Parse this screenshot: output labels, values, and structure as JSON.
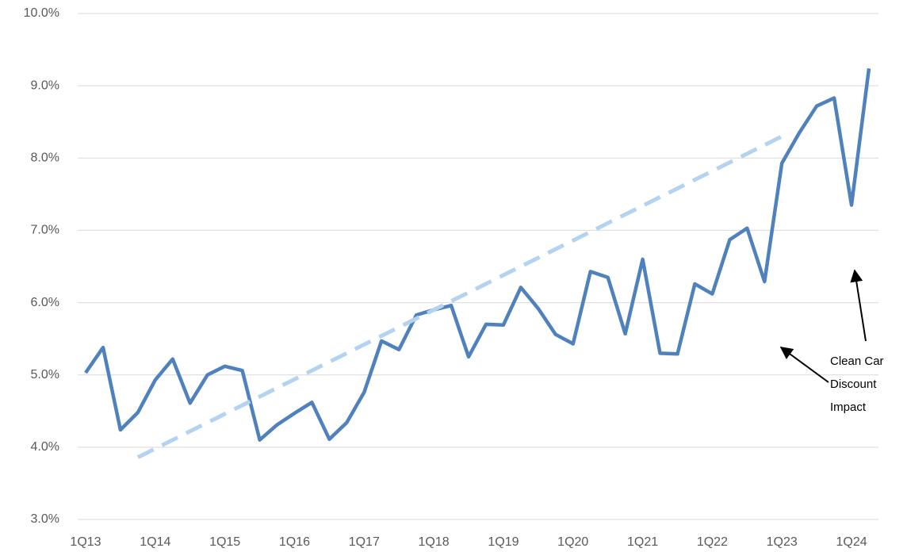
{
  "chart_data": {
    "type": "line",
    "categories": [
      "1Q13",
      null,
      null,
      null,
      "1Q14",
      null,
      null,
      null,
      "1Q15",
      null,
      null,
      null,
      "1Q16",
      null,
      null,
      null,
      "1Q17",
      null,
      null,
      null,
      "1Q18",
      null,
      null,
      null,
      "1Q19",
      null,
      null,
      null,
      "1Q20",
      null,
      null,
      null,
      "1Q21",
      null,
      null,
      null,
      "1Q22",
      null,
      null,
      null,
      "1Q23",
      null,
      null,
      null,
      "1Q24",
      null
    ],
    "series": [
      {
        "color": "#4f81bd",
        "style": "solid",
        "values": [
          5.03,
          5.38,
          4.24,
          4.48,
          4.93,
          5.22,
          4.61,
          5.0,
          5.12,
          5.06,
          4.1,
          4.31,
          4.47,
          4.62,
          4.11,
          4.34,
          4.76,
          5.47,
          5.35,
          5.83,
          5.9,
          5.96,
          5.25,
          5.7,
          5.69,
          6.21,
          5.92,
          5.56,
          5.43,
          6.43,
          6.35,
          5.57,
          6.6,
          5.3,
          5.29,
          6.26,
          6.12,
          6.87,
          7.03,
          6.29,
          7.93,
          8.35,
          8.72,
          8.83,
          7.35,
          9.24
        ]
      },
      {
        "color": "#b4d3f0",
        "style": "dashed",
        "values": [
          null,
          null,
          null,
          3.86,
          3.98,
          4.1,
          4.22,
          4.34,
          4.46,
          4.58,
          4.7,
          4.82,
          4.94,
          5.06,
          5.18,
          5.3,
          5.42,
          5.54,
          5.66,
          5.78,
          5.9,
          6.02,
          6.14,
          6.26,
          6.38,
          6.5,
          6.62,
          6.74,
          6.86,
          6.98,
          7.1,
          7.22,
          7.34,
          7.46,
          7.58,
          7.7,
          7.82,
          7.94,
          8.06,
          8.18,
          8.3,
          null,
          null,
          null,
          null,
          null
        ]
      }
    ],
    "ylim": [
      3,
      10
    ],
    "yticks": [
      {
        "value": 3,
        "label": "3.0%"
      },
      {
        "value": 4,
        "label": "4.0%"
      },
      {
        "value": 5,
        "label": "5.0%"
      },
      {
        "value": 6,
        "label": "6.0%"
      },
      {
        "value": 7,
        "label": "7.0%"
      },
      {
        "value": 8,
        "label": "8.0%"
      },
      {
        "value": 9,
        "label": "9.0%"
      },
      {
        "value": 10,
        "label": "10.0%"
      }
    ],
    "grid": true,
    "annotation": [
      "Clean Car",
      "Discount",
      "Impact"
    ]
  }
}
